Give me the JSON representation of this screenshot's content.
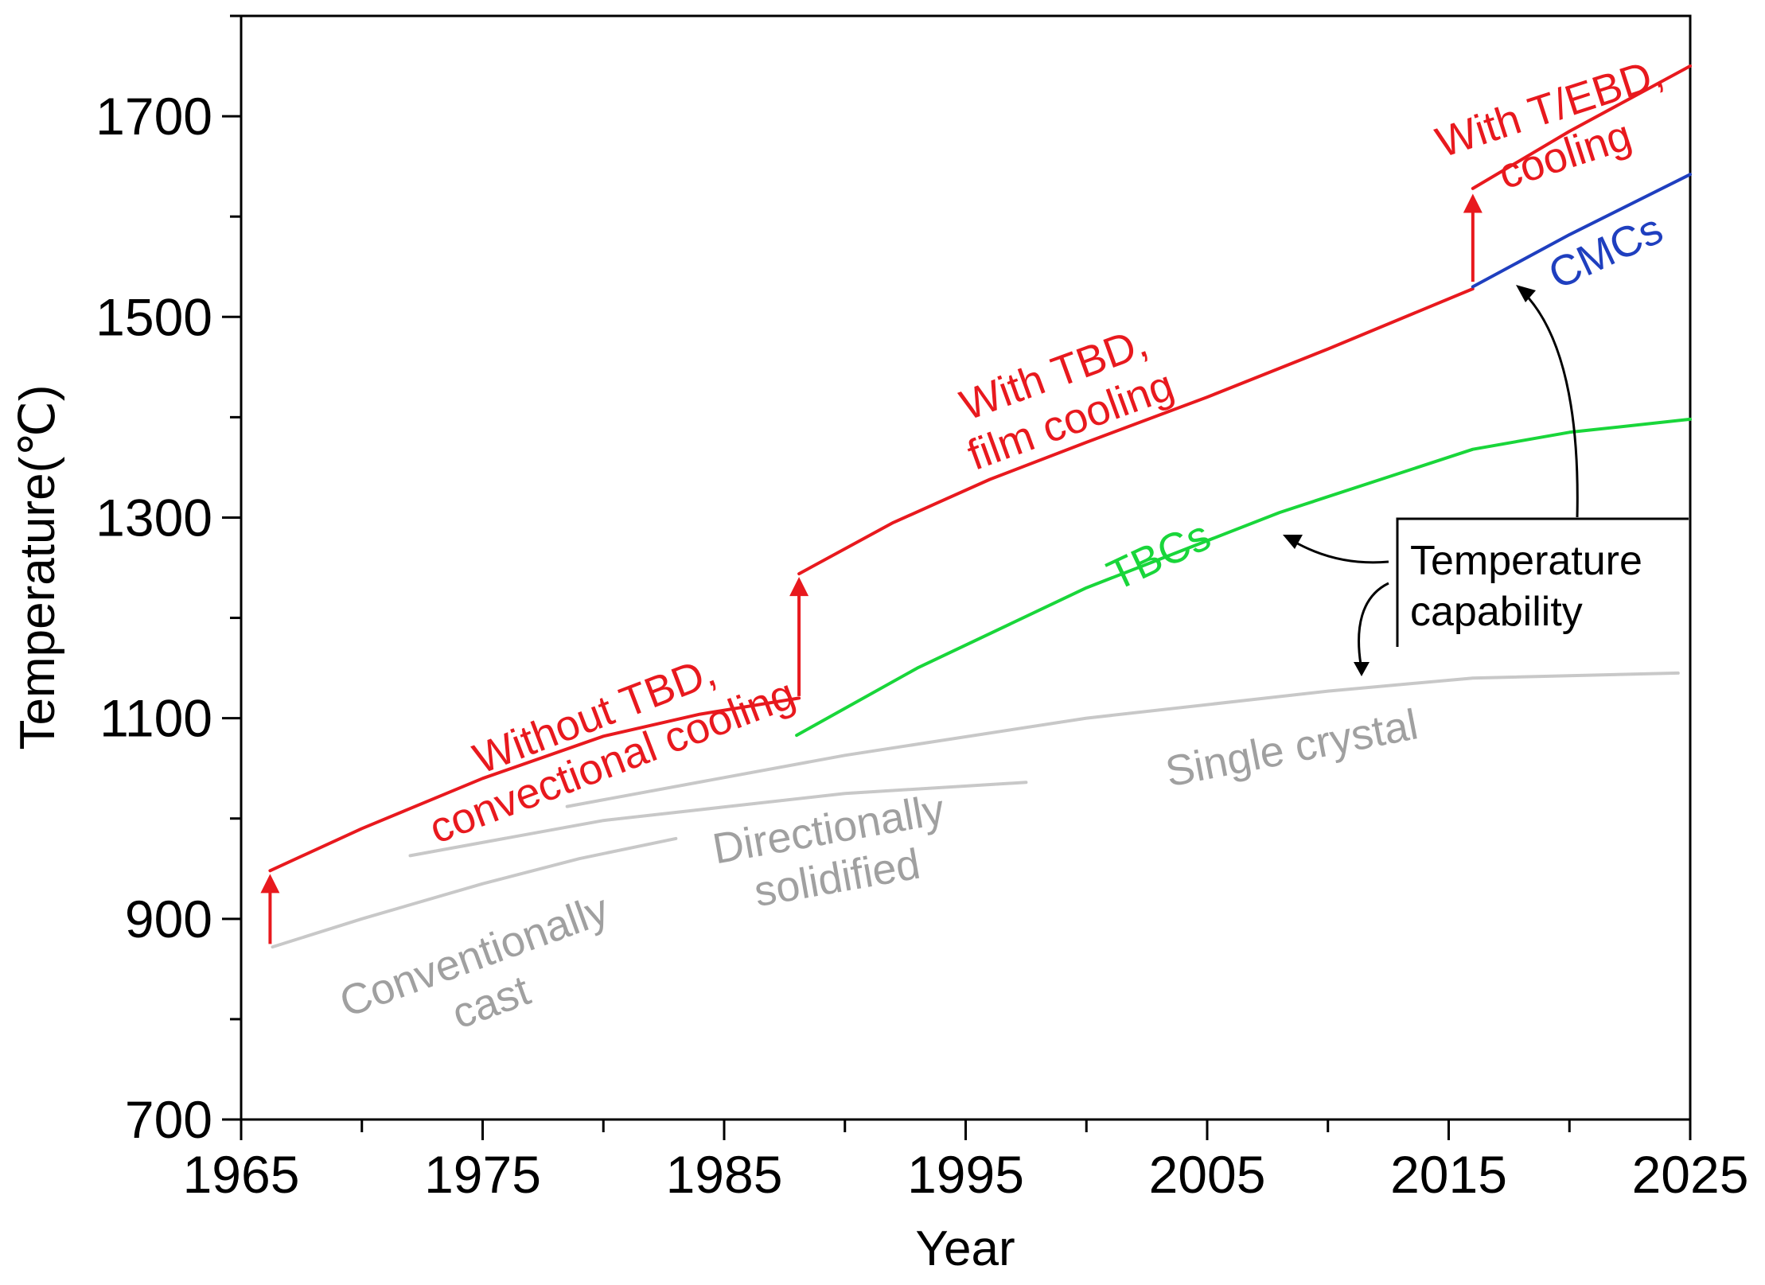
{
  "chart_data": {
    "type": "line",
    "title": "",
    "xlabel": "Year",
    "ylabel": "Temperature(℃)",
    "xlim": [
      1965,
      2025
    ],
    "ylim": [
      700,
      1800
    ],
    "x_ticks": [
      1965,
      1975,
      1985,
      1995,
      2005,
      2015,
      2025
    ],
    "y_ticks": [
      700,
      900,
      1100,
      1300,
      1500,
      1700
    ],
    "grid": false,
    "series": [
      {
        "name": "Without TBD, convectional cooling",
        "color": "#e8191e",
        "x": [
          1966.2,
          1970,
          1975,
          1980,
          1984,
          1988.1
        ],
        "y": [
          948,
          990,
          1040,
          1082,
          1104,
          1120
        ]
      },
      {
        "name": "With TBD, film cooling",
        "color": "#e8191e",
        "x": [
          1988.1,
          1992,
          1996,
          2000,
          2005,
          2010,
          2016
        ],
        "y": [
          1244,
          1295,
          1338,
          1375,
          1420,
          1468,
          1528
        ]
      },
      {
        "name": "With T/EBD, cooling",
        "color": "#e8191e",
        "x": [
          2016,
          2020,
          2025
        ],
        "y": [
          1628,
          1685,
          1750
        ]
      },
      {
        "name": "CMCs",
        "color": "#1f3fbf",
        "x": [
          2016,
          2020,
          2025
        ],
        "y": [
          1530,
          1582,
          1642
        ]
      },
      {
        "name": "TBCs",
        "color": "#19d63a",
        "x": [
          1988,
          1993,
          2000,
          2008,
          2016,
          2020,
          2025
        ],
        "y": [
          1083,
          1150,
          1230,
          1305,
          1368,
          1385,
          1398
        ]
      },
      {
        "name": "Conventionally cast",
        "color": "#c8c8c8",
        "x": [
          1966.3,
          1970,
          1975,
          1979,
          1983
        ],
        "y": [
          872,
          900,
          935,
          960,
          980
        ]
      },
      {
        "name": "Directionally solidified",
        "color": "#c8c8c8",
        "x": [
          1972,
          1980,
          1990,
          1997.5
        ],
        "y": [
          963,
          998,
          1025,
          1036
        ]
      },
      {
        "name": "Single crystal",
        "color": "#c8c8c8",
        "x": [
          1978.5,
          1990,
          2000,
          2010,
          2016,
          2024.5
        ],
        "y": [
          1012,
          1063,
          1100,
          1127,
          1140,
          1145
        ]
      }
    ],
    "arrows": [
      {
        "from": [
          1966.2,
          875
        ],
        "to": [
          1966.2,
          940
        ],
        "color": "#e8191e"
      },
      {
        "from": [
          1988.1,
          1122
        ],
        "to": [
          1988.1,
          1236
        ],
        "color": "#e8191e"
      },
      {
        "from": [
          2016,
          1535
        ],
        "to": [
          2016,
          1618
        ],
        "color": "#e8191e"
      }
    ],
    "annotations": [
      {
        "lines": [
          "Without TBD,",
          "convectional cooling"
        ],
        "color": "#e8191e",
        "x": 1980,
        "y": 1080,
        "angle": -21
      },
      {
        "lines": [
          "With TBD,",
          "film cooling"
        ],
        "color": "#e8191e",
        "x": 1999,
        "y": 1420,
        "angle": -20
      },
      {
        "lines": [
          "With T/EBD,",
          "cooling"
        ],
        "color": "#e8191e",
        "x": 2019.5,
        "y": 1685,
        "angle": -18
      },
      {
        "lines": [
          "CMCs"
        ],
        "color": "#1f3fbf",
        "x": 2021.5,
        "y": 1565,
        "angle": -25
      },
      {
        "lines": [
          "TBCs"
        ],
        "color": "#19d63a",
        "x": 2003,
        "y": 1262,
        "angle": -25
      },
      {
        "lines": [
          "Conventionally",
          "cast"
        ],
        "color": "#a0a0a0",
        "x": 1975,
        "y": 840,
        "angle": -20
      },
      {
        "lines": [
          "Directionally",
          "solidified"
        ],
        "color": "#a0a0a0",
        "x": 1989.5,
        "y": 965,
        "angle": -10
      },
      {
        "lines": [
          "Single crystal"
        ],
        "color": "#a0a0a0",
        "x": 2008.5,
        "y": 1070,
        "angle": -11
      }
    ],
    "callout": {
      "lines": [
        "Temperature",
        "capability"
      ],
      "text_color": "#000000"
    }
  }
}
